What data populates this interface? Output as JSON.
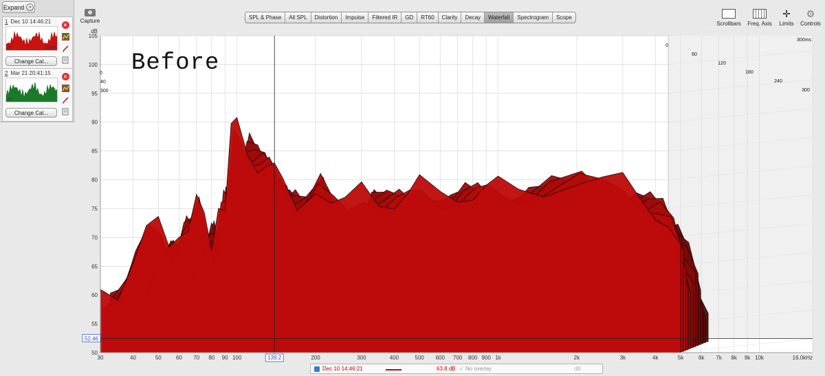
{
  "panel": {
    "expand_label": "Expand",
    "measurements": [
      {
        "number": "1",
        "date": "Dec 10 14:46:21",
        "change_label": "Change Cal...",
        "trace_color": "#cc1111",
        "scale_low": "20",
        "scale_high": "20000"
      },
      {
        "number": "2",
        "date": "Mar 21 20:41:15",
        "change_label": "Change Cal...",
        "trace_color": "#1a7a2a",
        "scale_low": "20",
        "scale_high": ""
      }
    ]
  },
  "toolbar": {
    "capture_label": "Capture",
    "tabs": [
      "SPL & Phase",
      "All SPL",
      "Distortion",
      "Impulse",
      "Filtered IR",
      "GD",
      "RT60",
      "Clarity",
      "Decay",
      "Waterfall",
      "Spectrogram",
      "Scope"
    ],
    "active_tab": "Waterfall",
    "tools": [
      "Scrollbars",
      "Freq. Axis",
      "Limits",
      "Controls"
    ]
  },
  "annotation": "Before",
  "chart_data": {
    "type": "area",
    "title": "",
    "ylabel": "dB",
    "ylim": [
      50,
      105
    ],
    "y_ticks": [
      "105",
      "100",
      "95",
      "90",
      "85",
      "80",
      "75",
      "70",
      "65",
      "60",
      "55",
      "50"
    ],
    "x_scale": "log",
    "xlim": [
      30,
      16000
    ],
    "x_ticks": [
      "30",
      "40",
      "50",
      "60",
      "70",
      "80",
      "90",
      "100",
      "200",
      "300",
      "400",
      "500",
      "600",
      "700",
      "800",
      "900",
      "1k",
      "2k",
      "3k",
      "4k",
      "5k",
      "6k",
      "7k",
      "8k",
      "9k",
      "10k",
      "16.0kHz"
    ],
    "time_ticks_left": [
      "0",
      "40",
      "300"
    ],
    "time_ticks_right": [
      "0",
      "60",
      "120",
      "180",
      "240",
      "300"
    ],
    "time_unit_label": "300ms",
    "cursor_frequency": "139.2",
    "cursor_level": "52.46",
    "series_color": "#b80f0f",
    "front_slice": {
      "name": "Dec 10 14:46:21",
      "x": [
        30,
        35,
        40,
        45,
        50,
        55,
        60,
        65,
        70,
        75,
        80,
        85,
        90,
        95,
        100,
        110,
        120,
        130,
        139,
        150,
        170,
        200,
        230,
        260,
        300,
        350,
        400,
        450,
        500,
        600,
        700,
        800,
        900,
        1000,
        1200,
        1500,
        2000,
        2500,
        3000,
        3500,
        4000,
        4500,
        5000
      ],
      "y": [
        61,
        62,
        67,
        70,
        71,
        69,
        73,
        72,
        75,
        72,
        69,
        78,
        75,
        87,
        89,
        86,
        84,
        82,
        80,
        79,
        77,
        80,
        75,
        74,
        79,
        78,
        77,
        76,
        78,
        78,
        79,
        78,
        77,
        78,
        79,
        80,
        80,
        78,
        79,
        78,
        76,
        72,
        66
      ]
    }
  },
  "legend": {
    "name": "Dec 10 14:46:21",
    "level": "63.8 dB",
    "overlay": "No overlay",
    "overlay_level": "dB"
  }
}
